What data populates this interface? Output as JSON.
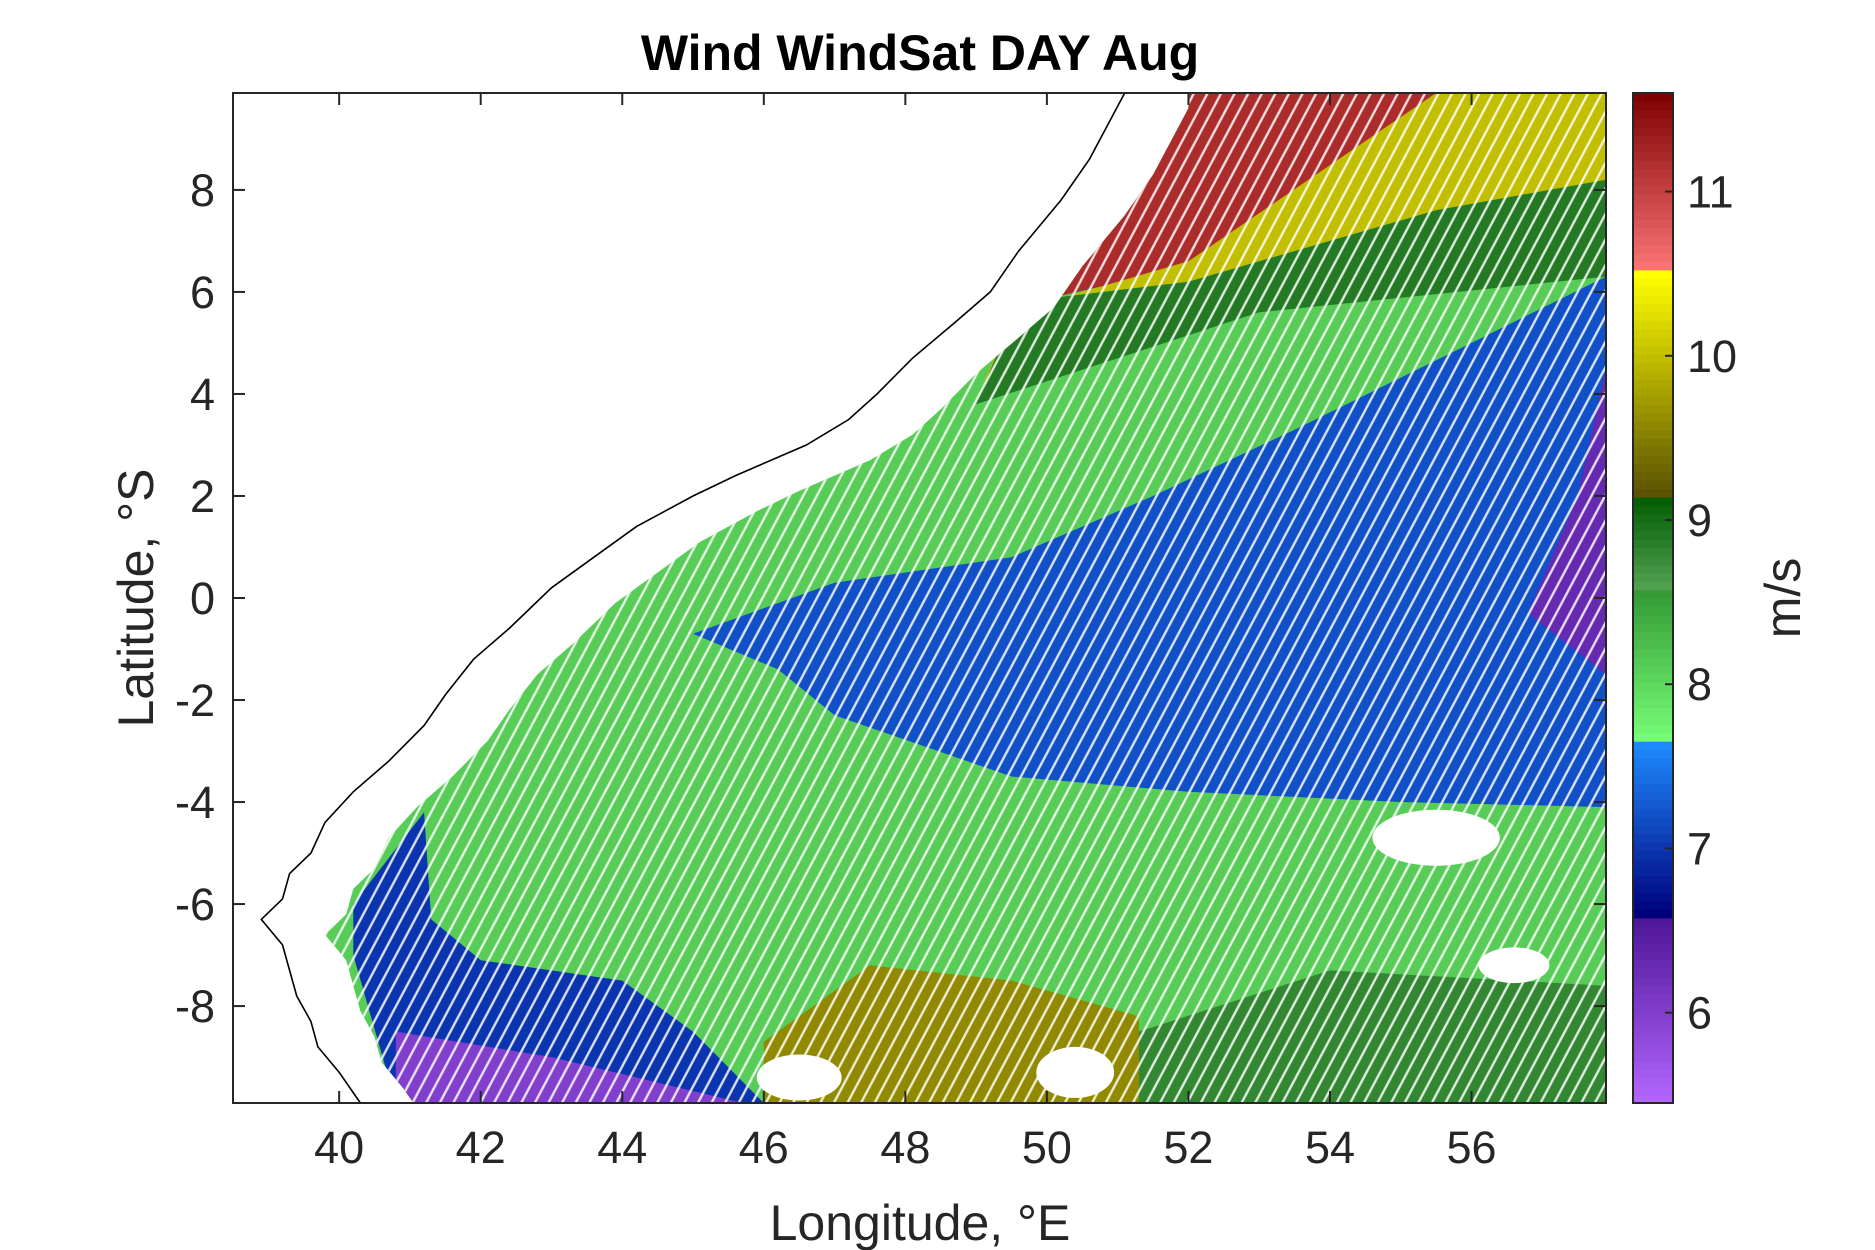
{
  "chart_data": {
    "type": "heatmap",
    "title": "Wind WindSat DAY Aug",
    "xlabel": "Longitude, °E",
    "ylabel": "Latitude, °S",
    "colorbar_label": "m/s",
    "xlim": [
      38.5,
      57.9
    ],
    "ylim": [
      -9.9,
      9.9
    ],
    "xticks": [
      40,
      42,
      44,
      46,
      48,
      50,
      52,
      54,
      56
    ],
    "xtick_labels": [
      "40",
      "42",
      "44",
      "46",
      "48",
      "50",
      "52",
      "54",
      "56"
    ],
    "yticks": [
      8,
      6,
      4,
      2,
      0,
      -2,
      -4,
      -6,
      -8
    ],
    "ytick_labels": [
      "8",
      "6",
      "4",
      "2",
      "0",
      "-2",
      "-4",
      "-6",
      "-8"
    ],
    "colorbar": {
      "range": [
        5.45,
        11.6
      ],
      "ticks": [
        11,
        10,
        9,
        8,
        7,
        6
      ],
      "tick_labels": [
        "11",
        "10",
        "9",
        "8",
        "7",
        "6"
      ],
      "bands": [
        {
          "from": 5.45,
          "to": 6.6,
          "low": "#b466ff",
          "high": "#4b1496"
        },
        {
          "from": 6.6,
          "to": 7.65,
          "low": "#00007d",
          "high": "#1e8cff"
        },
        {
          "from": 7.65,
          "to": 8.6,
          "low": "#78ff78",
          "high": "#329632"
        },
        {
          "from": 8.6,
          "to": 9.15,
          "low": "#50a050",
          "high": "#005a00"
        },
        {
          "from": 9.15,
          "to": 10.5,
          "low": "#5a5000",
          "high": "#ffff00"
        },
        {
          "from": 10.5,
          "to": 11.6,
          "low": "#ff7878",
          "high": "#7d0000"
        }
      ]
    },
    "wind_speed_regions": [
      {
        "name": "north red zone",
        "speed": 11.2,
        "polygon": [
          [
            51.7,
            9.9
          ],
          [
            57.9,
            9.9
          ],
          [
            57.9,
            8.5
          ],
          [
            55.5,
            8.0
          ],
          [
            52.0,
            6.5
          ],
          [
            49.8,
            5.8
          ],
          [
            50.8,
            7.5
          ]
        ]
      },
      {
        "name": "yellow band",
        "speed": 10.0,
        "polygon": [
          [
            55.5,
            9.9
          ],
          [
            57.9,
            9.9
          ],
          [
            57.9,
            8.2
          ],
          [
            55.5,
            7.6
          ],
          [
            52.0,
            6.2
          ],
          [
            49.6,
            5.8
          ],
          [
            49.1,
            4.2
          ],
          [
            50.0,
            5.8
          ],
          [
            52.0,
            6.6
          ]
        ]
      },
      {
        "name": "dark green band",
        "speed": 8.9,
        "polygon": [
          [
            57.9,
            8.2
          ],
          [
            57.9,
            6.3
          ],
          [
            53.0,
            5.6
          ],
          [
            49.0,
            3.8
          ],
          [
            49.6,
            5.8
          ],
          [
            52.0,
            6.2
          ],
          [
            55.5,
            7.6
          ]
        ]
      },
      {
        "name": "central blue zone",
        "speed": 7.2,
        "polygon": [
          [
            45.0,
            -0.7
          ],
          [
            47.0,
            0.3
          ],
          [
            49.5,
            0.8
          ],
          [
            51.5,
            2.0
          ],
          [
            53.5,
            3.3
          ],
          [
            56.0,
            5.0
          ],
          [
            57.9,
            6.3
          ],
          [
            57.9,
            -4.1
          ],
          [
            55.0,
            -4.0
          ],
          [
            52.0,
            -3.8
          ],
          [
            49.5,
            -3.5
          ],
          [
            47.0,
            -2.3
          ],
          [
            46.2,
            -1.4
          ]
        ]
      },
      {
        "name": "east purple zone",
        "speed": 6.3,
        "polygon": [
          [
            57.9,
            4.5
          ],
          [
            57.5,
            2.0
          ],
          [
            56.8,
            -0.3
          ],
          [
            57.9,
            -1.5
          ]
        ]
      },
      {
        "name": "southwest blue zone",
        "speed": 7.0,
        "polygon": [
          [
            40.2,
            -6.0
          ],
          [
            41.2,
            -4.2
          ],
          [
            41.3,
            -6.3
          ],
          [
            42.0,
            -7.1
          ],
          [
            44.0,
            -7.5
          ],
          [
            45.0,
            -8.5
          ],
          [
            46.0,
            -9.9
          ],
          [
            40.8,
            -9.9
          ],
          [
            40.2,
            -7.0
          ]
        ]
      },
      {
        "name": "southwest purple zone",
        "speed": 6.0,
        "polygon": [
          [
            40.8,
            -8.5
          ],
          [
            43.0,
            -9.0
          ],
          [
            45.7,
            -9.9
          ],
          [
            40.8,
            -9.9
          ]
        ]
      },
      {
        "name": "south olive zone",
        "speed": 9.6,
        "polygon": [
          [
            46.0,
            -8.7
          ],
          [
            47.5,
            -7.2
          ],
          [
            49.5,
            -7.5
          ],
          [
            51.3,
            -8.2
          ],
          [
            51.3,
            -9.9
          ],
          [
            46.0,
            -9.9
          ]
        ]
      },
      {
        "name": "southeast dark green zone",
        "speed": 8.8,
        "polygon": [
          [
            51.3,
            -8.5
          ],
          [
            54.0,
            -7.3
          ],
          [
            57.9,
            -7.6
          ],
          [
            57.9,
            -9.9
          ],
          [
            51.3,
            -9.9
          ]
        ]
      }
    ],
    "wind_vectors": {
      "direction": "from southeast",
      "color": "#ffffff"
    },
    "coastline": [
      [
        51.1,
        9.9
      ],
      [
        50.6,
        8.6
      ],
      [
        50.2,
        7.8
      ],
      [
        49.6,
        6.8
      ],
      [
        49.2,
        6.0
      ],
      [
        48.7,
        5.4
      ],
      [
        48.1,
        4.7
      ],
      [
        47.6,
        4.0
      ],
      [
        47.2,
        3.5
      ],
      [
        46.6,
        3.0
      ],
      [
        45.6,
        2.4
      ],
      [
        45.0,
        2.0
      ],
      [
        44.2,
        1.4
      ],
      [
        43.6,
        0.8
      ],
      [
        43.0,
        0.2
      ],
      [
        42.4,
        -0.6
      ],
      [
        41.9,
        -1.2
      ],
      [
        41.5,
        -1.9
      ],
      [
        41.2,
        -2.5
      ],
      [
        40.7,
        -3.2
      ],
      [
        40.2,
        -3.8
      ],
      [
        39.8,
        -4.4
      ],
      [
        39.6,
        -5.0
      ],
      [
        39.3,
        -5.4
      ],
      [
        39.2,
        -5.9
      ],
      [
        38.9,
        -6.3
      ],
      [
        39.2,
        -6.8
      ],
      [
        39.3,
        -7.3
      ],
      [
        39.4,
        -7.8
      ],
      [
        39.6,
        -8.3
      ],
      [
        39.7,
        -8.8
      ],
      [
        40.0,
        -9.3
      ],
      [
        40.3,
        -9.9
      ]
    ]
  }
}
